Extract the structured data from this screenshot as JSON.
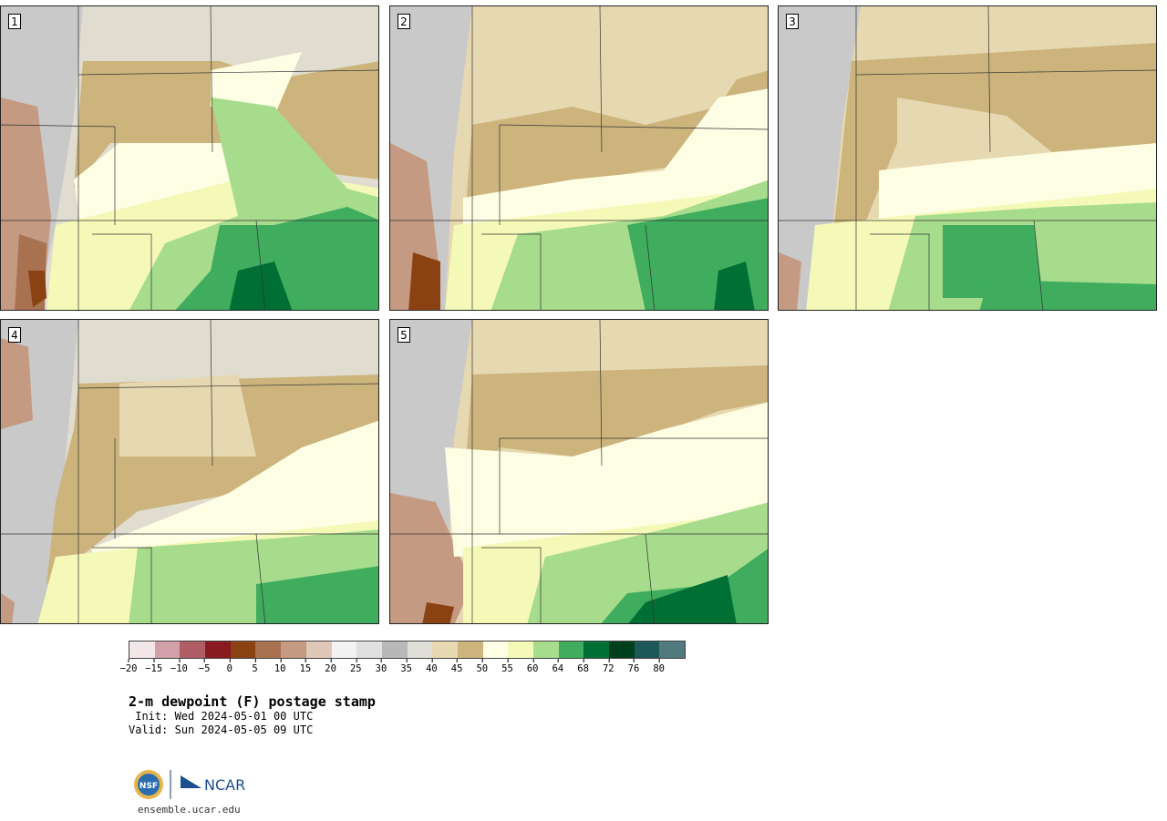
{
  "panels": [
    {
      "label": "1"
    },
    {
      "label": "2"
    },
    {
      "label": "3"
    },
    {
      "label": "4"
    },
    {
      "label": "5"
    }
  ],
  "colorbar": {
    "colors": [
      "#f3e6e8",
      "#d1a0a8",
      "#b05e66",
      "#8a1a22",
      "#8b4213",
      "#a8714f",
      "#c49a82",
      "#e0c8b8",
      "#f2f2f2",
      "#e0e0e0",
      "#b8b8b8",
      "#e0e0d8",
      "#e6d8b0",
      "#ccb47c",
      "#fefee4",
      "#f5f9b8",
      "#a6dc8c",
      "#3fac5e",
      "#006f34",
      "#00401f",
      "#1c5858",
      "#507a7e"
    ],
    "tick_labels": [
      "−20",
      "−15",
      "−10",
      "−5",
      "0",
      "5",
      "10",
      "15",
      "20",
      "25",
      "30",
      "35",
      "40",
      "45",
      "50",
      "55",
      "60",
      "64",
      "68",
      "72",
      "76",
      "80"
    ]
  },
  "title": "2-m dewpoint (F) postage stamp",
  "init": " Init: Wed 2024-05-01 00 UTC",
  "valid": "Valid: Sun 2024-05-05 09 UTC",
  "logo": {
    "nsf": "NSF",
    "ncar": "NCAR"
  },
  "url": "ensemble.ucar.edu"
}
